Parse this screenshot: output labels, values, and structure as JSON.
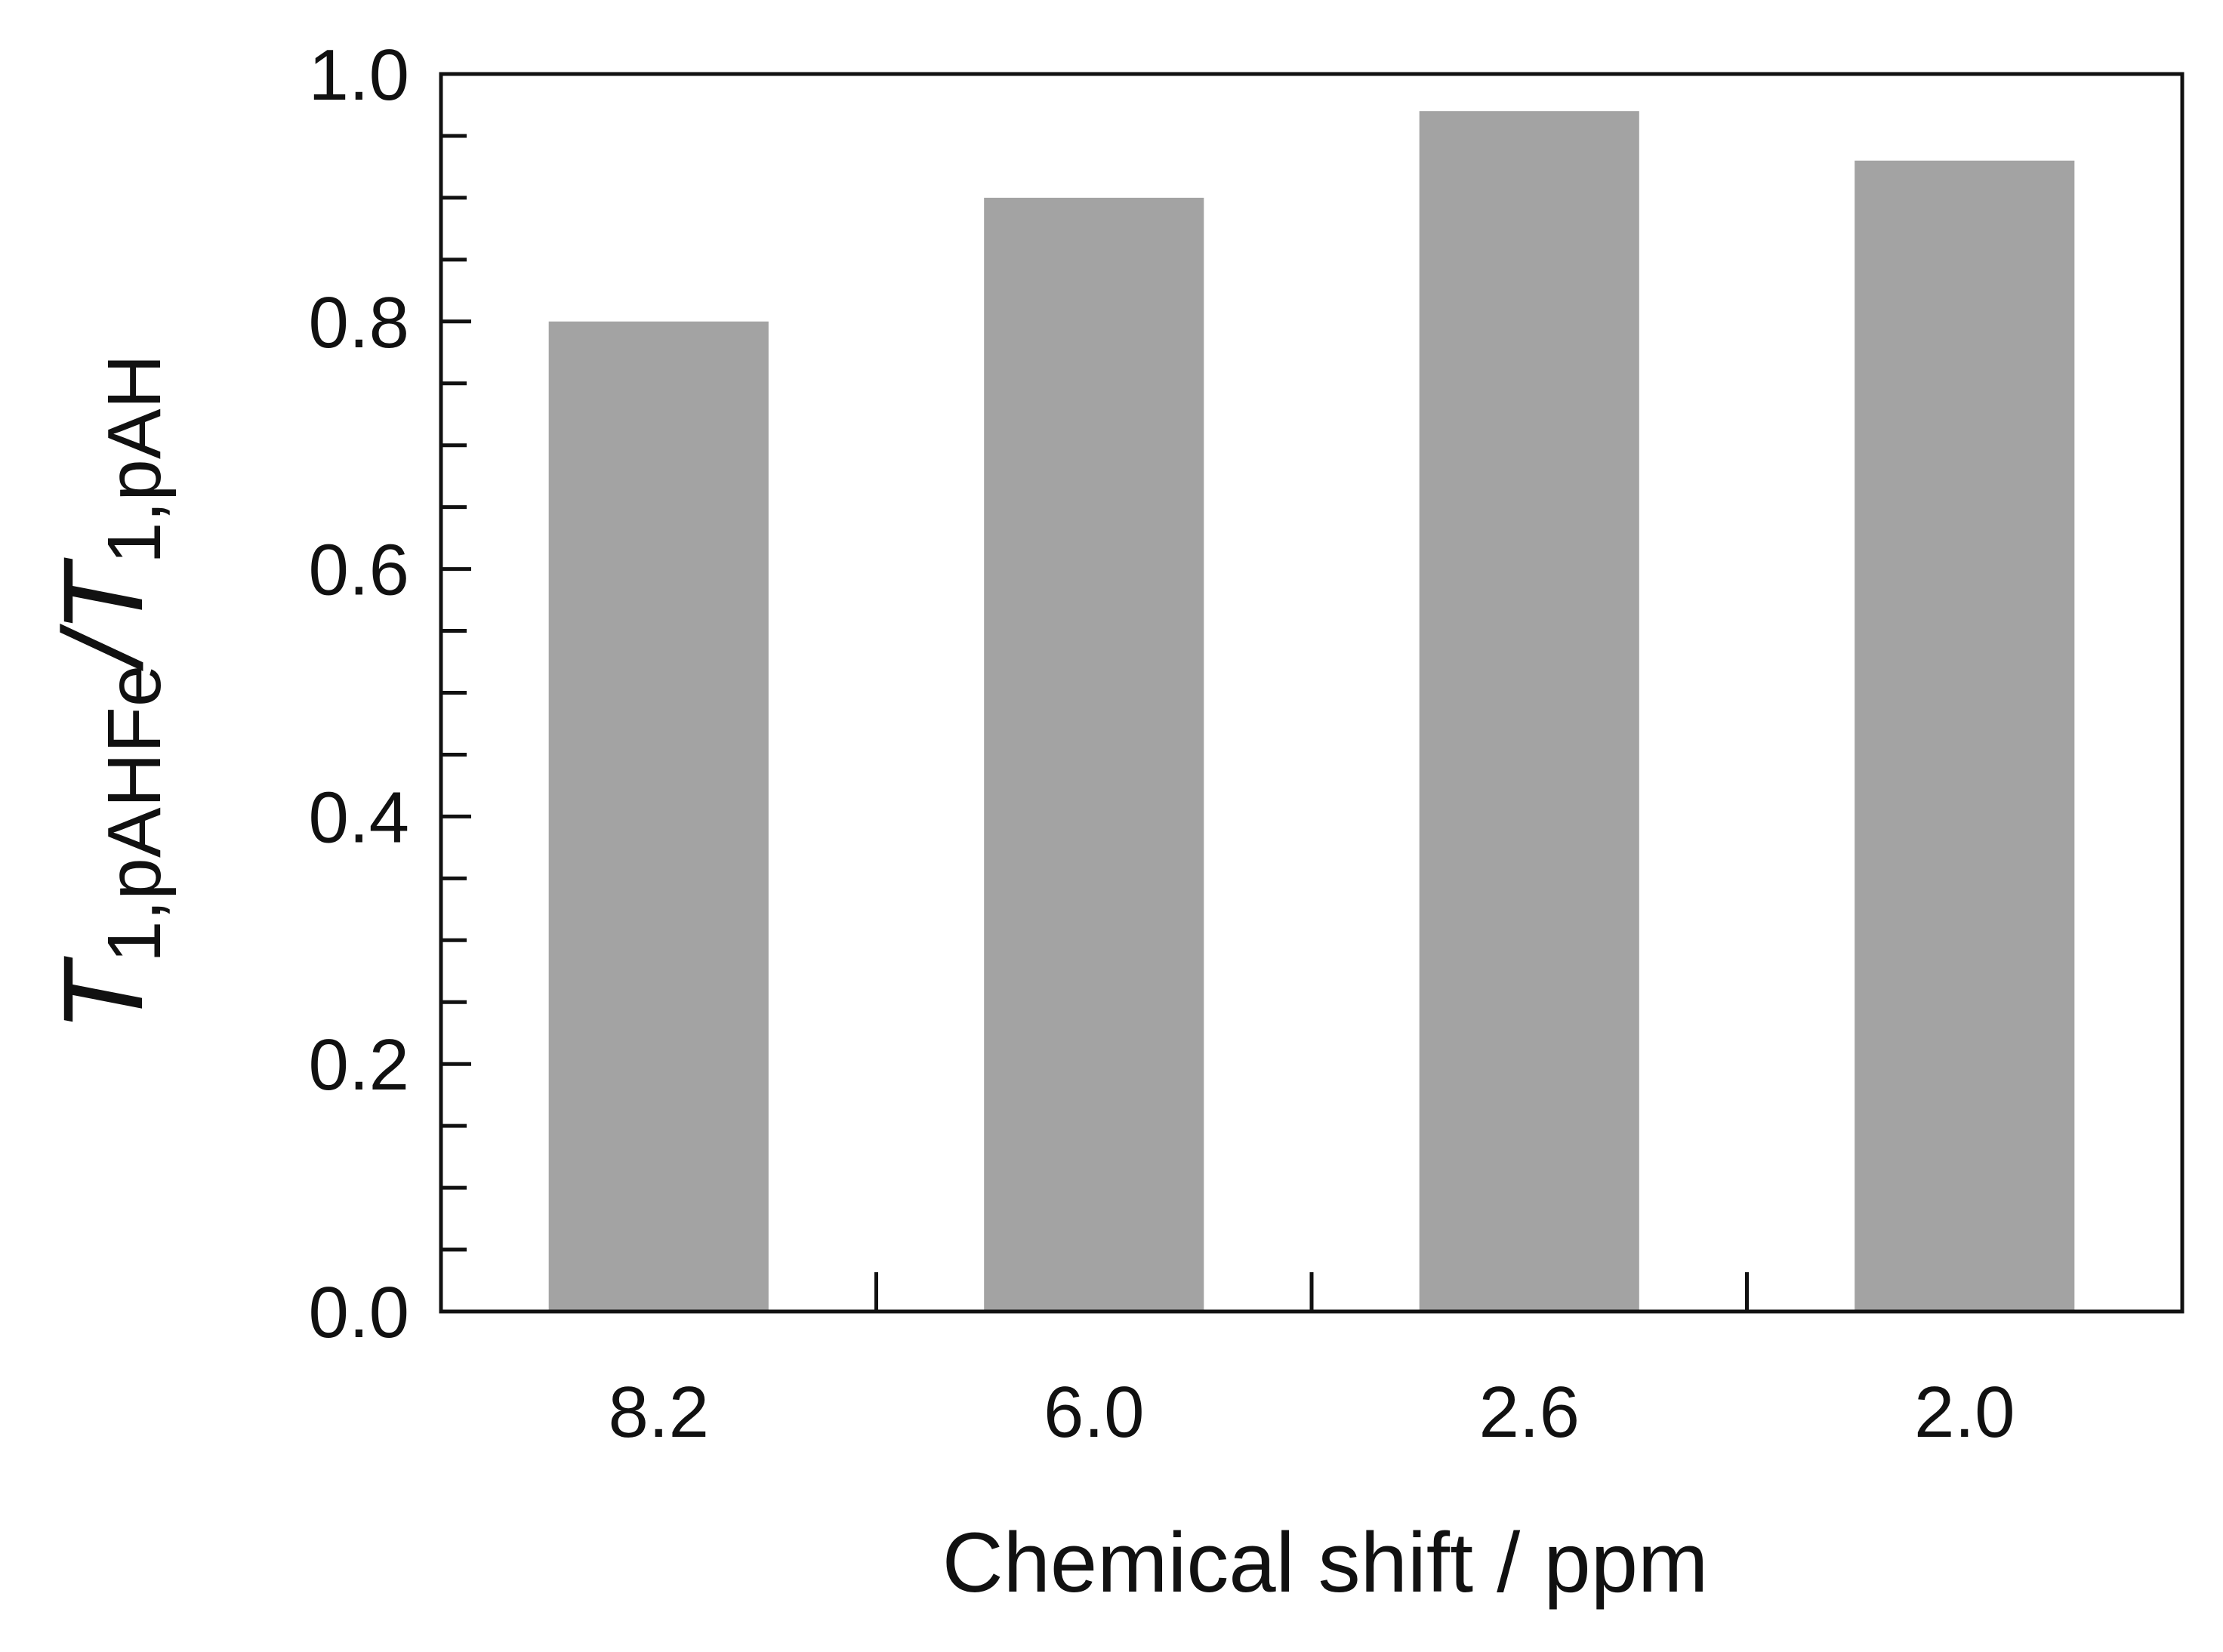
{
  "chart_data": {
    "type": "bar",
    "categories": [
      "8.2",
      "6.0",
      "2.6",
      "2.0"
    ],
    "values": [
      0.8,
      0.9,
      0.97,
      0.93
    ],
    "xlabel": "Chemical shift / ppm",
    "ylabel": {
      "t1": "T",
      "sub1": "1,pAHFe",
      "slash": "/",
      "t2": "T",
      "sub2": "1,pAH"
    },
    "ylim": [
      0.0,
      1.0
    ],
    "yticks": [
      "0.0",
      "0.2",
      "0.4",
      "0.6",
      "0.8",
      "1.0"
    ],
    "grid": false,
    "bar_color": "#a3a3a3"
  }
}
